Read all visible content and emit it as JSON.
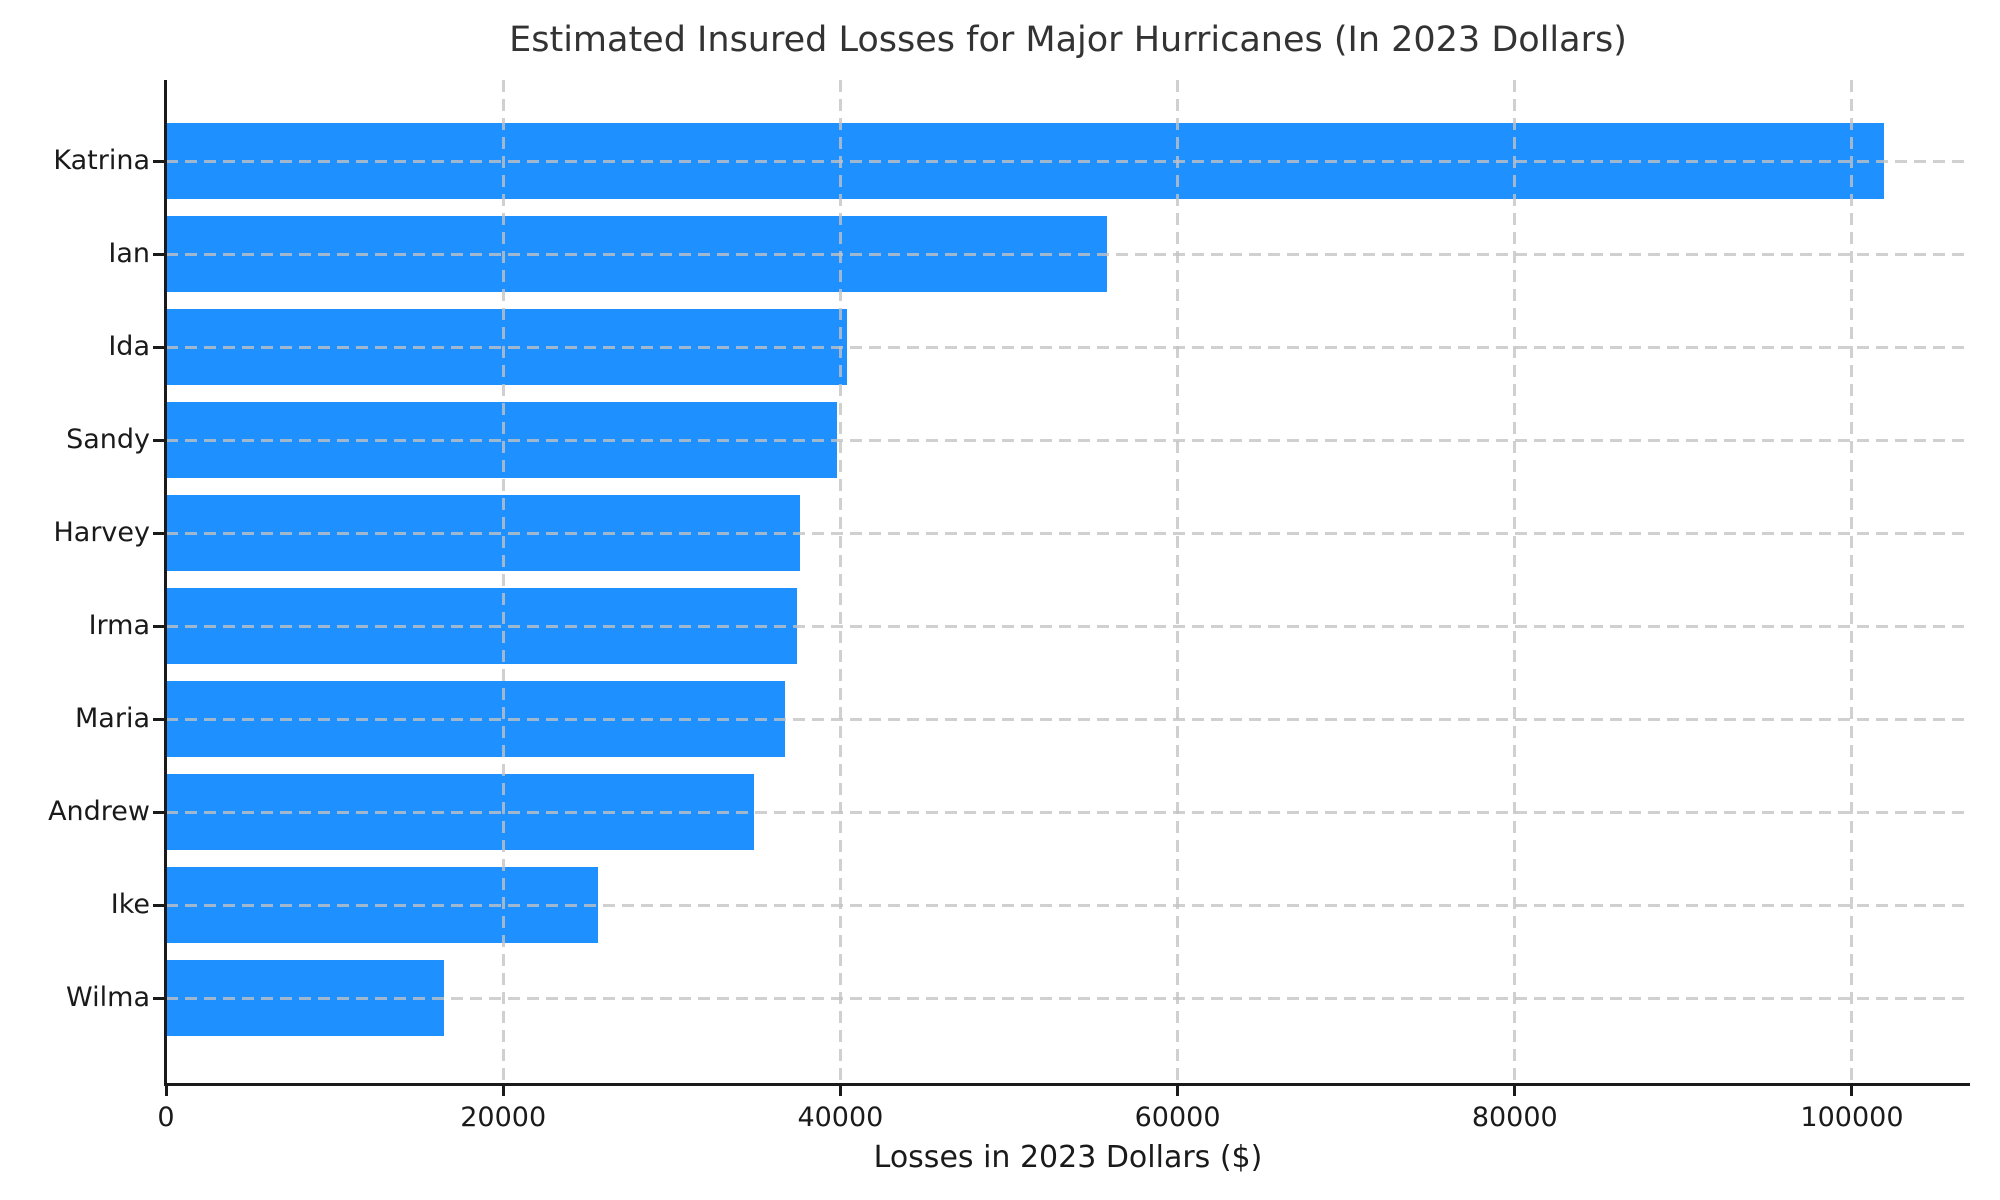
{
  "chart_data": {
    "type": "bar",
    "orientation": "horizontal",
    "title": "Estimated Insured Losses for Major Hurricanes (In 2023 Dollars)",
    "xlabel": "Losses in 2023 Dollars ($)",
    "ylabel": "",
    "categories": [
      "Katrina",
      "Ian",
      "Ida",
      "Sandy",
      "Harvey",
      "Irma",
      "Maria",
      "Andrew",
      "Ike",
      "Wilma"
    ],
    "values": [
      101900,
      55800,
      40400,
      39800,
      37600,
      37400,
      36700,
      34900,
      25600,
      16500
    ],
    "xlim": [
      0,
      107000
    ],
    "xticks": [
      0,
      20000,
      40000,
      60000,
      80000,
      100000
    ],
    "xtick_labels": [
      "0",
      "20000",
      "40000",
      "60000",
      "80000",
      "100000"
    ],
    "grid": true,
    "grid_axis": "both",
    "grid_style": "dashed",
    "legend_position": "none",
    "colors": {
      "bar": "#1E90FF",
      "grid": "#c3c3c3",
      "spine": "#1a1a1a",
      "title_text": "#333333",
      "tick_text": "#1a1a1a",
      "background": "#ffffff"
    }
  }
}
